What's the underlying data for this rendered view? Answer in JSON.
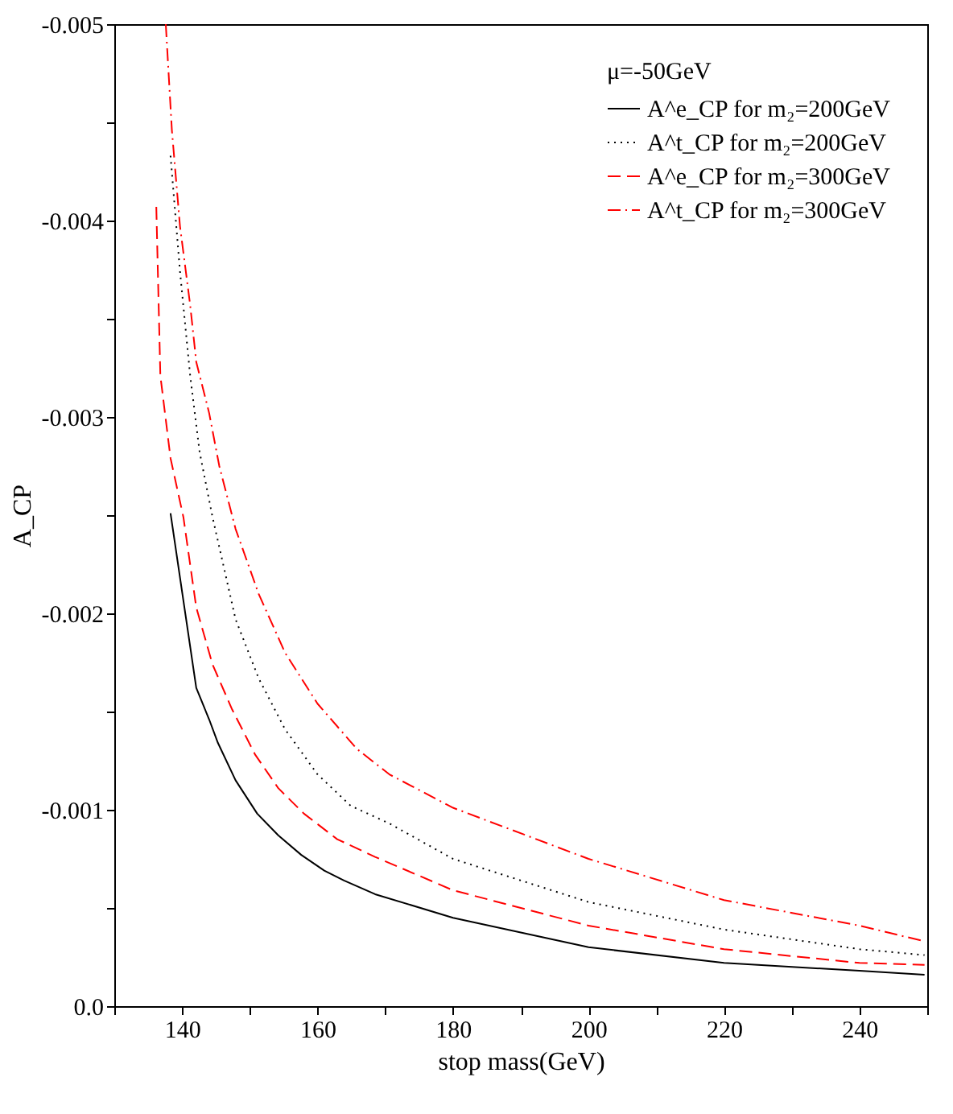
{
  "chart_data": {
    "type": "line",
    "xlabel": "stop mass(GeV)",
    "ylabel": "A_CP",
    "legend_title": "μ=-50GeV",
    "xlim": [
      130,
      250
    ],
    "ylim": [
      0,
      -0.005
    ],
    "xticks": [
      {
        "value": 130,
        "label": null
      },
      140,
      {
        "value": 150,
        "label": null
      },
      160,
      {
        "value": 170,
        "label": null
      },
      180,
      {
        "value": 190,
        "label": null
      },
      200,
      {
        "value": 210,
        "label": null
      },
      220,
      {
        "value": 230,
        "label": null
      },
      240,
      {
        "value": 250,
        "label": null
      }
    ],
    "yticks": [
      {
        "value": 0,
        "label": "0.0"
      },
      {
        "value": -0.0005,
        "label": null
      },
      -0.001,
      {
        "value": -0.0015,
        "label": null
      },
      -0.002,
      {
        "value": -0.0025,
        "label": null
      },
      -0.003,
      {
        "value": -0.0035,
        "label": null
      },
      -0.004,
      {
        "value": -0.0045,
        "label": null
      },
      -0.005
    ],
    "grid": false,
    "legend": "top right",
    "marker": "none",
    "series": [
      {
        "name": "A^e_CP for m₂=200GeV",
        "color": "#000000",
        "line_style": "solid",
        "x": [
          138.3,
          142.1,
          144.0,
          145.3,
          147.9,
          151.1,
          154.2,
          157.6,
          161.0,
          163.9,
          168.5,
          180,
          200,
          220,
          240,
          249.6
        ],
        "values": [
          -0.00251,
          -0.00162,
          -0.00146,
          -0.00134,
          -0.00115,
          -0.00098,
          -0.00087,
          -0.00077,
          -0.00069,
          -0.00064,
          -0.00057,
          -0.00045,
          -0.0003,
          -0.00022,
          -0.00018,
          -0.00016
        ]
      },
      {
        "name": "A^t_CP for m₂=200GeV",
        "color": "#000000",
        "line_style": "dotted",
        "x": [
          138.3,
          139.7,
          141.2,
          142.6,
          144.5,
          147.9,
          151.3,
          155.2,
          160.0,
          164.9,
          170.6,
          180,
          200,
          220,
          240,
          249.6
        ],
        "values": [
          -0.00433,
          -0.00374,
          -0.00321,
          -0.00282,
          -0.00249,
          -0.00197,
          -0.00167,
          -0.00141,
          -0.00118,
          -0.00102,
          -0.00093,
          -0.00075,
          -0.00053,
          -0.00039,
          -0.00029,
          -0.00026
        ]
      },
      {
        "name": "A^e_CP for m₂=300GeV",
        "color": "#ff0000",
        "line_style": "dashed",
        "x": [
          136.2,
          136.8,
          138.3,
          140.2,
          142.1,
          144.5,
          147.4,
          150.8,
          154.2,
          158.0,
          162.9,
          168.5,
          180,
          200,
          220,
          240,
          249.6
        ],
        "values": [
          -0.00407,
          -0.00321,
          -0.00279,
          -0.00249,
          -0.00203,
          -0.00174,
          -0.00151,
          -0.00128,
          -0.00111,
          -0.00098,
          -0.00085,
          -0.00076,
          -0.00059,
          -0.00041,
          -0.00029,
          -0.00022,
          -0.00021
        ]
      },
      {
        "name": "A^t_CP for m₂=300GeV",
        "color": "#ff0000",
        "line_style": "dashdot",
        "x": [
          137.6,
          138.5,
          139.7,
          141.2,
          142.1,
          144.0,
          145.5,
          147.9,
          151.3,
          155.2,
          160.0,
          165.8,
          170.6,
          180,
          200,
          220,
          240,
          249.6
        ],
        "values": [
          -0.005,
          -0.00446,
          -0.00397,
          -0.00357,
          -0.00328,
          -0.00302,
          -0.00275,
          -0.00243,
          -0.0021,
          -0.0018,
          -0.00154,
          -0.00131,
          -0.00118,
          -0.00101,
          -0.00075,
          -0.00054,
          -0.00041,
          -0.00033
        ]
      }
    ]
  }
}
